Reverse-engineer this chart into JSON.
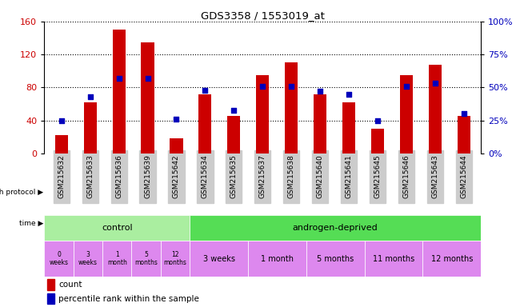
{
  "title": "GDS3358 / 1553019_at",
  "samples": [
    "GSM215632",
    "GSM215633",
    "GSM215636",
    "GSM215639",
    "GSM215642",
    "GSM215634",
    "GSM215635",
    "GSM215637",
    "GSM215638",
    "GSM215640",
    "GSM215641",
    "GSM215645",
    "GSM215646",
    "GSM215643",
    "GSM215644"
  ],
  "counts": [
    22,
    62,
    150,
    135,
    18,
    72,
    46,
    95,
    110,
    72,
    62,
    30,
    95,
    108,
    46
  ],
  "percentiles": [
    25,
    43,
    57,
    57,
    26,
    48,
    33,
    51,
    51,
    47,
    45,
    25,
    51,
    53,
    30
  ],
  "ylim_left": [
    0,
    160
  ],
  "ylim_right": [
    0,
    100
  ],
  "yticks_left": [
    0,
    40,
    80,
    120,
    160
  ],
  "yticks_right": [
    0,
    25,
    50,
    75,
    100
  ],
  "bar_color": "#cc0000",
  "dot_color": "#0000bb",
  "grid_color": "#000000",
  "control_color": "#aaeea0",
  "androgen_color": "#55dd55",
  "time_color": "#dd88ee",
  "control_label": "control",
  "androgen_label": "androgen-deprived",
  "growth_protocol_label": "growth protocol",
  "time_label": "time",
  "legend_count": "count",
  "legend_percentile": "percentile rank within the sample",
  "control_times": [
    "0\nweeks",
    "3\nweeks",
    "1\nmonth",
    "5\nmonths",
    "12\nmonths"
  ],
  "androgen_times": [
    "3 weeks",
    "1 month",
    "5 months",
    "11 months",
    "12 months"
  ],
  "control_sample_count": 5,
  "androgen_sample_count": 10,
  "tick_label_color_left": "#cc0000",
  "tick_label_color_right": "#0000bb",
  "bar_width": 0.45
}
